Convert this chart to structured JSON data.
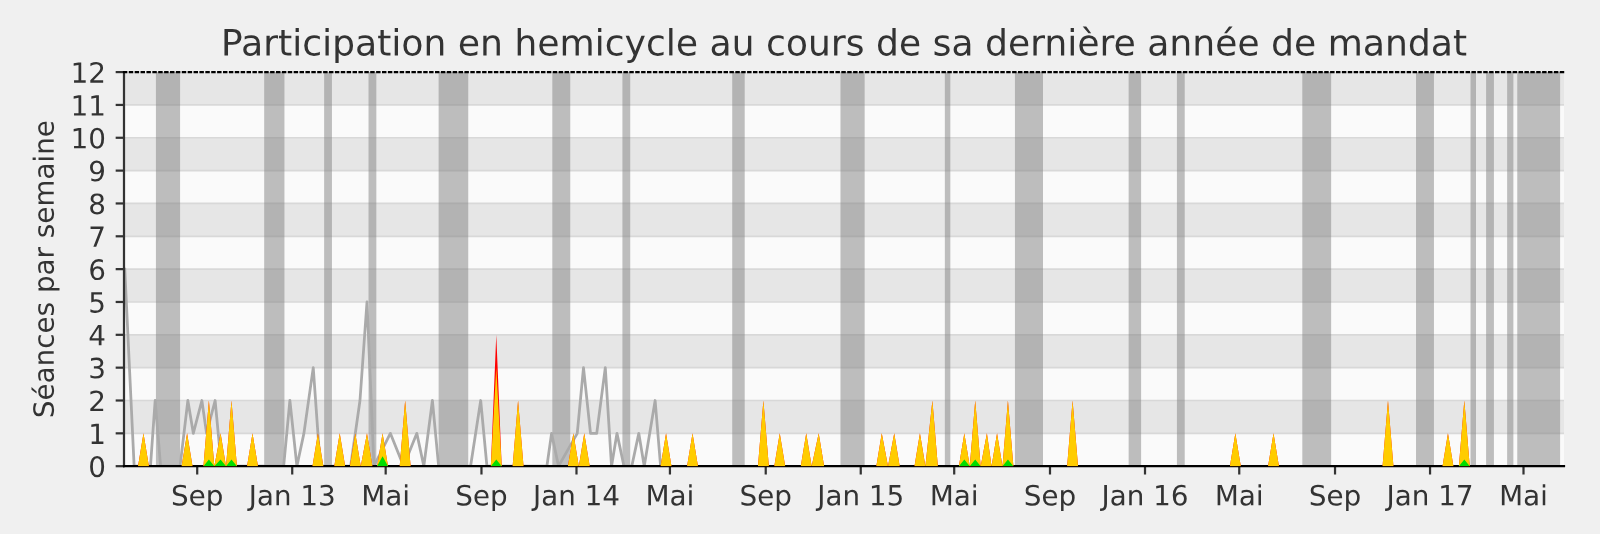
{
  "chart_data": {
    "type": "area",
    "title": "Participation en hemicycle au cours de sa dernière année de mandat",
    "ylabel": "Séances par semaine",
    "xlim": [
      "2012-05-30",
      "2017-06-22"
    ],
    "ylim": [
      0,
      12
    ],
    "yticks": [
      0,
      1,
      2,
      3,
      4,
      5,
      6,
      7,
      8,
      9,
      10,
      11,
      12
    ],
    "grid": "y",
    "xticks": [
      {
        "value": "2012-09-01",
        "label": "Sep"
      },
      {
        "value": "2013-01-01",
        "label": "Jan 13"
      },
      {
        "value": "2013-05-01",
        "label": "Mai"
      },
      {
        "value": "2013-09-01",
        "label": "Sep"
      },
      {
        "value": "2014-01-01",
        "label": "Jan 14"
      },
      {
        "value": "2014-05-01",
        "label": "Mai"
      },
      {
        "value": "2014-09-01",
        "label": "Sep"
      },
      {
        "value": "2015-01-01",
        "label": "Jan 15"
      },
      {
        "value": "2015-05-01",
        "label": "Mai"
      },
      {
        "value": "2015-09-01",
        "label": "Sep"
      },
      {
        "value": "2016-01-01",
        "label": "Jan 16"
      },
      {
        "value": "2016-05-01",
        "label": "Mai"
      },
      {
        "value": "2016-09-01",
        "label": "Sep"
      },
      {
        "value": "2017-01-01",
        "label": "Jan 17"
      },
      {
        "value": "2017-05-01",
        "label": "Mai"
      }
    ],
    "bands": [
      {
        "axis": "x",
        "from": "2012-07-10",
        "to": "2012-08-10",
        "label": null,
        "color": "#808080"
      },
      {
        "axis": "x",
        "from": "2012-11-26",
        "to": "2012-12-22",
        "label": null,
        "color": "#808080"
      },
      {
        "axis": "x",
        "from": "2013-02-11",
        "to": "2013-02-21",
        "label": null,
        "color": "#808080"
      },
      {
        "axis": "x",
        "from": "2013-04-09",
        "to": "2013-04-19",
        "label": null,
        "color": "#808080"
      },
      {
        "axis": "x",
        "from": "2013-07-08",
        "to": "2013-08-15",
        "label": null,
        "color": "#808080"
      },
      {
        "axis": "x",
        "from": "2013-12-01",
        "to": "2013-12-24",
        "label": null,
        "color": "#808080"
      },
      {
        "axis": "x",
        "from": "2014-03-01",
        "to": "2014-03-11",
        "label": null,
        "color": "#808080"
      },
      {
        "axis": "x",
        "from": "2014-07-20",
        "to": "2014-08-05",
        "label": null,
        "color": "#808080"
      },
      {
        "axis": "x",
        "from": "2014-12-06",
        "to": "2015-01-06",
        "label": null,
        "color": "#808080"
      },
      {
        "axis": "x",
        "from": "2015-04-19",
        "to": "2015-04-26",
        "label": null,
        "color": "#808080"
      },
      {
        "axis": "x",
        "from": "2015-07-18",
        "to": "2015-08-23",
        "label": null,
        "color": "#808080"
      },
      {
        "axis": "x",
        "from": "2015-12-11",
        "to": "2015-12-27",
        "label": null,
        "color": "#808080"
      },
      {
        "axis": "x",
        "from": "2016-02-11",
        "to": "2016-02-21",
        "label": null,
        "color": "#808080"
      },
      {
        "axis": "x",
        "from": "2016-07-21",
        "to": "2016-08-27",
        "label": null,
        "color": "#808080"
      },
      {
        "axis": "x",
        "from": "2016-12-14",
        "to": "2017-01-06",
        "label": null,
        "color": "#808080"
      },
      {
        "axis": "x",
        "from": "2017-02-22",
        "to": "2017-03-01",
        "label": null,
        "color": "#808080"
      },
      {
        "axis": "x",
        "from": "2017-03-14",
        "to": "2017-03-24",
        "label": null,
        "color": "#808080"
      },
      {
        "axis": "x",
        "from": "2017-04-10",
        "to": "2017-04-18",
        "label": null,
        "color": "#808080"
      },
      {
        "axis": "x",
        "from": "2017-04-23",
        "to": "2017-06-17",
        "label": null,
        "color": "#808080"
      }
    ],
    "series": [
      {
        "type": "line",
        "color": "#aaaaaa",
        "x": [
          "2012-05-31",
          "2012-06-12",
          "2012-07-03",
          "2012-07-09",
          "2012-07-16",
          "2012-08-10",
          "2012-08-20",
          "2012-08-27",
          "2012-09-07",
          "2012-09-13",
          "2012-09-24",
          "2012-10-02",
          "2012-12-21",
          "2012-12-29",
          "2013-01-07",
          "2013-01-16",
          "2013-01-28",
          "2013-02-06",
          "2013-03-17",
          "2013-03-29",
          "2013-04-07",
          "2013-04-16",
          "2013-05-07",
          "2013-05-24",
          "2013-06-10",
          "2013-06-19",
          "2013-06-30",
          "2013-07-08",
          "2013-08-18",
          "2013-08-31",
          "2013-09-08",
          "2013-11-24",
          "2013-11-30",
          "2013-12-09",
          "2014-01-02",
          "2014-01-10",
          "2014-01-19",
          "2014-01-27",
          "2014-02-07",
          "2014-02-15",
          "2014-02-22",
          "2014-03-03",
          "2014-03-13",
          "2014-03-22",
          "2014-03-29",
          "2014-04-12",
          "2014-04-19"
        ],
        "values": [
          6,
          0,
          0,
          2,
          0,
          0,
          2,
          1,
          2,
          1,
          2,
          0,
          0,
          2,
          0,
          1,
          3,
          0,
          0,
          2,
          5,
          0,
          1,
          0,
          1,
          0,
          2,
          0,
          0,
          2,
          0,
          0,
          1,
          0,
          1,
          3,
          1,
          1,
          3,
          0,
          1,
          0,
          0,
          1,
          0,
          2,
          0
        ]
      },
      {
        "color": "#ff0000",
        "x": [
          "2012-06-17",
          "2012-06-24",
          "2012-07-01",
          "2012-08-12",
          "2012-08-19",
          "2012-08-26",
          "2012-09-09",
          "2012-09-16",
          "2012-09-23",
          "2012-10-01",
          "2012-10-08",
          "2012-10-15",
          "2012-10-22",
          "2012-11-04",
          "2012-11-11",
          "2012-11-18",
          "2013-01-27",
          "2013-02-03",
          "2013-02-10",
          "2013-02-24",
          "2013-03-03",
          "2013-03-10",
          "2013-03-16",
          "2013-03-23",
          "2013-03-30",
          "2013-04-07",
          "2013-04-14",
          "2013-04-20",
          "2013-04-27",
          "2013-05-04",
          "2013-05-19",
          "2013-05-26",
          "2013-06-02",
          "2013-09-13",
          "2013-09-20",
          "2013-09-27",
          "2013-10-11",
          "2013-10-18",
          "2013-10-25",
          "2013-12-21",
          "2013-12-28",
          "2014-01-04",
          "2014-01-11",
          "2014-01-18",
          "2014-04-19",
          "2014-04-26",
          "2014-05-03",
          "2014-05-23",
          "2014-05-30",
          "2014-06-06",
          "2014-08-22",
          "2014-08-29",
          "2014-09-05",
          "2014-09-12",
          "2014-09-19",
          "2014-09-26",
          "2014-10-16",
          "2014-10-23",
          "2014-10-30",
          "2014-11-08",
          "2014-11-15",
          "2015-01-21",
          "2015-01-28",
          "2015-02-05",
          "2015-02-13",
          "2015-02-20",
          "2015-03-11",
          "2015-03-18",
          "2015-03-25",
          "2015-04-03",
          "2015-04-10",
          "2015-05-07",
          "2015-05-14",
          "2015-05-21",
          "2015-05-28",
          "2015-06-04",
          "2015-06-12",
          "2015-06-18",
          "2015-06-25",
          "2015-07-02",
          "2015-07-09",
          "2015-07-16",
          "2015-09-23",
          "2015-09-30",
          "2015-10-07",
          "2016-04-19",
          "2016-04-26",
          "2016-05-03",
          "2016-06-07",
          "2016-06-14",
          "2016-06-21",
          "2016-11-01",
          "2016-11-08",
          "2016-11-15",
          "2017-01-17",
          "2017-01-24",
          "2017-01-31",
          "2017-02-07",
          "2017-02-14",
          "2017-02-21"
        ],
        "values": [
          0,
          1,
          0,
          0,
          1,
          0,
          0,
          2,
          0,
          1,
          0,
          2,
          0,
          0,
          1,
          0,
          0,
          1,
          0,
          0,
          1,
          0,
          0,
          1,
          0,
          1,
          0,
          0,
          1,
          0,
          0,
          2,
          0,
          0,
          4,
          0,
          0,
          2,
          0,
          0,
          1,
          0,
          1,
          0,
          0,
          1,
          0,
          0,
          1,
          0,
          0,
          2,
          0,
          0,
          1,
          0,
          0,
          1,
          0,
          1,
          0,
          0,
          1,
          0,
          1,
          0,
          0,
          1,
          0,
          2,
          0,
          0,
          1,
          0,
          2,
          0,
          1,
          0,
          1,
          0,
          2,
          0,
          0,
          2,
          0,
          0,
          1,
          0,
          0,
          1,
          0,
          0,
          2,
          0,
          0,
          1,
          0,
          0,
          2,
          0
        ]
      },
      {
        "color": "#ffcc00",
        "x": [
          "2012-06-17",
          "2012-06-24",
          "2012-07-01",
          "2012-08-12",
          "2012-08-19",
          "2012-08-26",
          "2012-09-09",
          "2012-09-16",
          "2012-09-23",
          "2012-10-01",
          "2012-10-08",
          "2012-10-15",
          "2012-10-22",
          "2012-11-04",
          "2012-11-11",
          "2012-11-18",
          "2013-01-27",
          "2013-02-03",
          "2013-02-10",
          "2013-02-24",
          "2013-03-03",
          "2013-03-10",
          "2013-03-16",
          "2013-03-23",
          "2013-03-30",
          "2013-04-07",
          "2013-04-14",
          "2013-04-20",
          "2013-04-27",
          "2013-05-04",
          "2013-05-19",
          "2013-05-26",
          "2013-06-02",
          "2013-09-13",
          "2013-09-20",
          "2013-09-27",
          "2013-10-11",
          "2013-10-18",
          "2013-10-25",
          "2013-12-21",
          "2013-12-28",
          "2014-01-04",
          "2014-01-11",
          "2014-01-18",
          "2014-04-19",
          "2014-04-26",
          "2014-05-03",
          "2014-05-23",
          "2014-05-30",
          "2014-06-06",
          "2014-08-22",
          "2014-08-29",
          "2014-09-05",
          "2014-09-12",
          "2014-09-19",
          "2014-09-26",
          "2014-10-16",
          "2014-10-23",
          "2014-10-30",
          "2014-11-08",
          "2014-11-15",
          "2015-01-21",
          "2015-01-28",
          "2015-02-05",
          "2015-02-13",
          "2015-02-20",
          "2015-03-11",
          "2015-03-18",
          "2015-03-25",
          "2015-04-03",
          "2015-04-10",
          "2015-05-07",
          "2015-05-14",
          "2015-05-21",
          "2015-05-28",
          "2015-06-04",
          "2015-06-12",
          "2015-06-18",
          "2015-06-25",
          "2015-07-02",
          "2015-07-09",
          "2015-07-16",
          "2015-09-23",
          "2015-09-30",
          "2015-10-07",
          "2016-04-19",
          "2016-04-26",
          "2016-05-03",
          "2016-06-07",
          "2016-06-14",
          "2016-06-21",
          "2016-11-01",
          "2016-11-08",
          "2016-11-15",
          "2017-01-17",
          "2017-01-24",
          "2017-01-31",
          "2017-02-07",
          "2017-02-14",
          "2017-02-21"
        ],
        "values": [
          0,
          1,
          0,
          0,
          1,
          0,
          0,
          2,
          0,
          1,
          0,
          2,
          0,
          0,
          1,
          0,
          0,
          1,
          0,
          0,
          1,
          0,
          0,
          1,
          0,
          1,
          0,
          0,
          1,
          0,
          0,
          2,
          0,
          0,
          3,
          0,
          0,
          2,
          0,
          0,
          1,
          0,
          1,
          0,
          0,
          1,
          0,
          0,
          1,
          0,
          0,
          2,
          0,
          0,
          1,
          0,
          0,
          1,
          0,
          1,
          0,
          0,
          1,
          0,
          1,
          0,
          0,
          1,
          0,
          2,
          0,
          0,
          1,
          0,
          2,
          0,
          1,
          0,
          1,
          0,
          2,
          0,
          0,
          2,
          0,
          0,
          1,
          0,
          0,
          1,
          0,
          0,
          2,
          0,
          0,
          1,
          0,
          0,
          2,
          0
        ]
      },
      {
        "color": "#00dd00",
        "x": [
          "2012-09-09",
          "2012-09-16",
          "2012-09-23",
          "2012-10-01",
          "2012-10-08",
          "2012-10-15",
          "2012-10-22",
          "2013-04-20",
          "2013-04-27",
          "2013-05-04",
          "2013-09-13",
          "2013-09-20",
          "2013-09-27",
          "2015-05-07",
          "2015-05-14",
          "2015-05-21",
          "2015-05-28",
          "2015-06-04",
          "2015-07-02",
          "2015-07-09",
          "2015-07-16",
          "2017-02-07",
          "2017-02-14",
          "2017-02-21"
        ],
        "values": [
          0,
          0.2,
          0,
          0.2,
          0,
          0.2,
          0,
          0,
          0.3,
          0,
          0,
          0.2,
          0,
          0,
          0.2,
          0,
          0.2,
          0,
          0,
          0.2,
          0,
          0,
          0.2,
          0
        ]
      }
    ]
  }
}
